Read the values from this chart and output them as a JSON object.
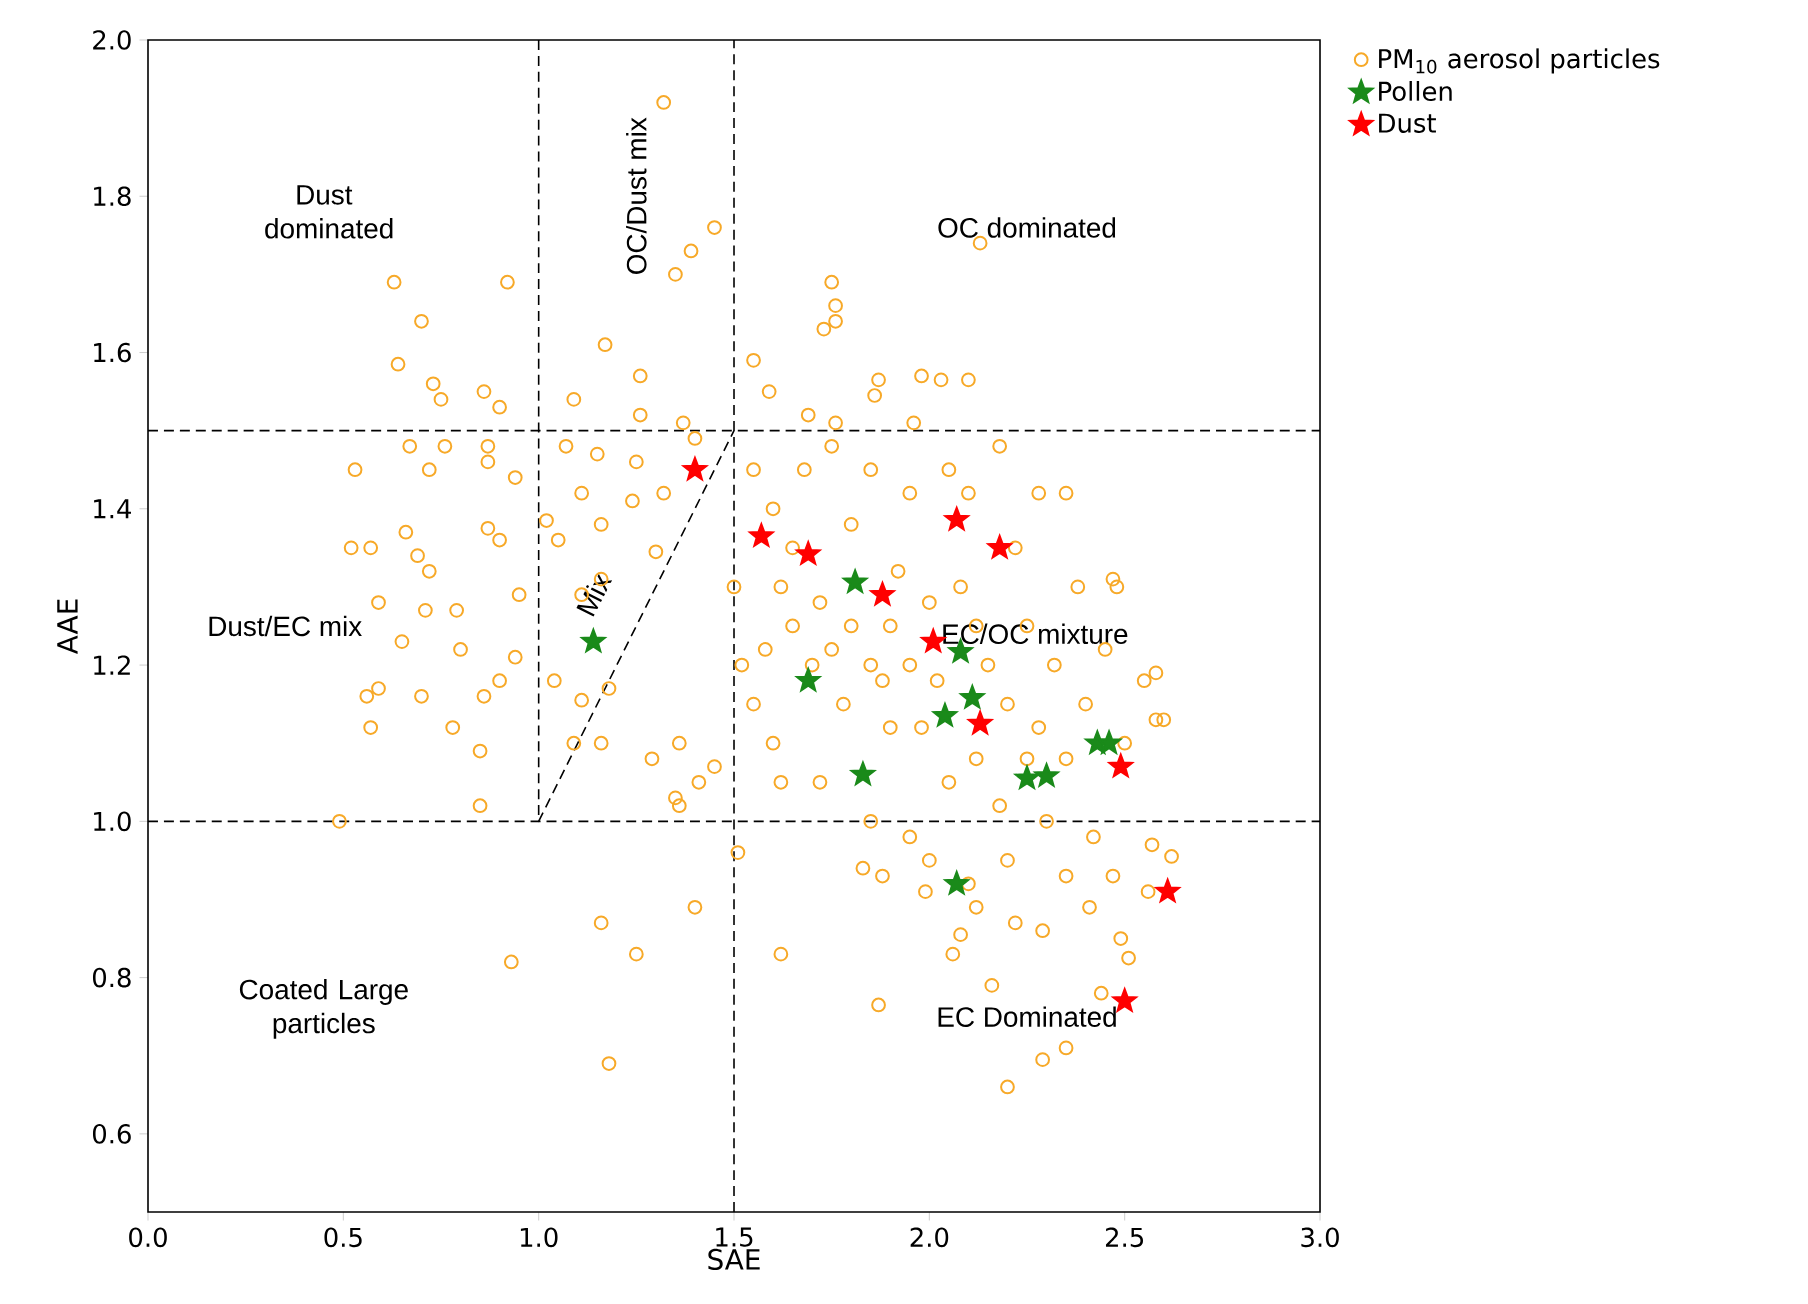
{
  "chart_data": {
    "type": "scatter",
    "xlabel": "SAE",
    "ylabel": "AAE",
    "xlim": [
      0,
      3
    ],
    "ylim": [
      0.5,
      2.0
    ],
    "xticks": [
      {
        "value": 0,
        "label": "0.0"
      },
      0.5,
      {
        "value": 1,
        "label": "1.0"
      },
      1.5,
      {
        "value": 2,
        "label": "2.0"
      },
      2.5,
      {
        "value": 3,
        "label": "3.0"
      }
    ],
    "yticks": [
      0.6,
      0.8,
      {
        "value": 1,
        "label": "1.0"
      },
      1.2,
      1.4,
      1.6,
      1.8,
      {
        "value": 2,
        "label": "2.0"
      }
    ],
    "legend": "top right",
    "series": [
      {
        "name": "PM$_{10}$ aerosol particles",
        "color": "#f7a928",
        "marker": "circle",
        "x": [
          1.32,
          1.45,
          1.39,
          1.35,
          0.92,
          0.63,
          0.7,
          0.64,
          0.73,
          0.75,
          0.86,
          0.9,
          1.09,
          1.26,
          1.26,
          1.37,
          1.4,
          1.17,
          0.67,
          0.76,
          0.87,
          0.53,
          0.72,
          0.87,
          0.94,
          0.52,
          0.57,
          0.66,
          0.69,
          0.72,
          0.87,
          0.9,
          0.71,
          0.79,
          0.95,
          0.59,
          0.65,
          0.8,
          0.94,
          0.59,
          0.7,
          0.57,
          0.9,
          0.86,
          0.78,
          0.56,
          0.85,
          0.49,
          0.85,
          1.35,
          1.51,
          1.16,
          0.93,
          1.25,
          1.4,
          1.18,
          1.07,
          1.15,
          1.25,
          1.11,
          1.24,
          1.32,
          1.05,
          1.16,
          1.3,
          1.11,
          1.16,
          1.02,
          1.04,
          1.11,
          1.18,
          1.09,
          1.16,
          1.29,
          1.36,
          1.41,
          1.45,
          1.36,
          1.55,
          1.59,
          1.75,
          1.76,
          1.76,
          1.73,
          1.87,
          1.86,
          2.03,
          2.1,
          2.13,
          1.96,
          1.69,
          1.76,
          1.98,
          1.55,
          1.6,
          1.62,
          1.58,
          1.55,
          1.6,
          1.65,
          1.7,
          1.72,
          1.75,
          1.78,
          1.8,
          1.85,
          1.88,
          1.9,
          1.92,
          1.95,
          1.98,
          2.0,
          2.02,
          2.05,
          2.08,
          2.1,
          2.12,
          2.15,
          2.18,
          2.2,
          2.22,
          2.25,
          2.28,
          2.3,
          2.32,
          2.35,
          2.38,
          2.4,
          2.42,
          2.45,
          2.5,
          2.55,
          2.58,
          2.48,
          1.68,
          1.75,
          1.85,
          1.95,
          2.05,
          2.18,
          2.28,
          1.5,
          1.52,
          1.62,
          1.72,
          1.85,
          1.95,
          2.0,
          2.1,
          2.2,
          2.35,
          1.65,
          1.8,
          1.9,
          2.12,
          2.25,
          1.62,
          1.87,
          2.06,
          2.08,
          2.2,
          2.29,
          2.35,
          2.16,
          2.44,
          2.49,
          2.51,
          2.56,
          2.62,
          2.57,
          2.6,
          2.58,
          2.47,
          2.41,
          2.29,
          2.22,
          2.12,
          1.99,
          1.88,
          1.83,
          2.47,
          2.35
        ],
        "values": [
          1.92,
          1.76,
          1.73,
          1.7,
          1.69,
          1.69,
          1.64,
          1.585,
          1.56,
          1.54,
          1.55,
          1.53,
          1.54,
          1.57,
          1.52,
          1.51,
          1.49,
          1.61,
          1.48,
          1.48,
          1.48,
          1.45,
          1.45,
          1.46,
          1.44,
          1.35,
          1.35,
          1.37,
          1.34,
          1.32,
          1.375,
          1.36,
          1.27,
          1.27,
          1.29,
          1.28,
          1.23,
          1.22,
          1.21,
          1.17,
          1.16,
          1.12,
          1.18,
          1.16,
          1.12,
          1.16,
          1.09,
          1.0,
          1.02,
          1.03,
          0.96,
          0.87,
          0.82,
          0.83,
          0.89,
          0.69,
          1.48,
          1.47,
          1.46,
          1.42,
          1.41,
          1.42,
          1.36,
          1.38,
          1.345,
          1.29,
          1.31,
          1.385,
          1.18,
          1.155,
          1.17,
          1.1,
          1.1,
          1.08,
          1.1,
          1.05,
          1.07,
          1.02,
          1.59,
          1.55,
          1.69,
          1.66,
          1.64,
          1.63,
          1.565,
          1.545,
          1.565,
          1.565,
          1.74,
          1.51,
          1.52,
          1.51,
          1.57,
          1.45,
          1.4,
          1.3,
          1.22,
          1.15,
          1.1,
          1.25,
          1.2,
          1.28,
          1.22,
          1.15,
          1.25,
          1.2,
          1.18,
          1.25,
          1.32,
          1.2,
          1.12,
          1.28,
          1.18,
          1.05,
          1.3,
          1.42,
          1.08,
          1.2,
          1.02,
          1.15,
          1.35,
          1.25,
          1.12,
          1.0,
          1.2,
          1.08,
          1.3,
          1.15,
          0.98,
          1.22,
          1.1,
          1.18,
          1.13,
          1.3,
          1.45,
          1.48,
          1.45,
          1.42,
          1.45,
          1.48,
          1.42,
          1.3,
          1.2,
          1.05,
          1.05,
          1.0,
          0.98,
          0.95,
          0.92,
          0.95,
          0.93,
          1.35,
          1.38,
          1.12,
          1.25,
          1.08,
          0.83,
          0.765,
          0.83,
          0.855,
          0.66,
          0.695,
          0.71,
          0.79,
          0.78,
          0.85,
          0.825,
          0.91,
          0.955,
          0.97,
          1.13,
          1.19,
          0.93,
          0.89,
          0.86,
          0.87,
          0.89,
          0.91,
          0.93,
          0.94,
          1.31,
          1.42
        ]
      },
      {
        "name": "Pollen",
        "color": "#1a8a1a",
        "marker": "star",
        "x": [
          1.14,
          1.69,
          1.81,
          2.08,
          2.11,
          2.04,
          1.83,
          2.25,
          2.3,
          2.43,
          2.46,
          2.07
        ],
        "values": [
          1.23,
          1.18,
          1.306,
          1.217,
          1.158,
          1.135,
          1.06,
          1.055,
          1.058,
          1.1,
          1.1,
          0.92
        ]
      },
      {
        "name": "Dust",
        "color": "#ff0000",
        "marker": "star",
        "x": [
          1.4,
          1.57,
          1.69,
          1.88,
          2.01,
          2.07,
          2.18,
          2.13,
          2.49,
          2.61,
          2.5
        ],
        "values": [
          1.45,
          1.365,
          1.342,
          1.29,
          1.23,
          1.386,
          1.35,
          1.125,
          1.07,
          0.91,
          0.77
        ]
      },
      {
        "type": "line",
        "color": "#000000",
        "line_style": "dashed",
        "marker": "none",
        "x": [
          1,
          1,
          1.5
        ],
        "values": [
          2,
          1,
          1.5
        ]
      }
    ],
    "ref_lines": [
      {
        "axis": "x",
        "value": 1.5,
        "color": "#000000",
        "line_style": "dashed"
      },
      {
        "axis": "y",
        "value": 1.5,
        "color": "#000000",
        "line_style": "dashed"
      },
      {
        "axis": "y",
        "value": 1.0,
        "color": "#000000",
        "line_style": "dashed"
      }
    ],
    "annotations": [
      "Dust dominated",
      "OC/Dust mix",
      "OC dominated",
      "Dust/EC mix",
      "Mix",
      "EC/OC mixture",
      "Coated Large particles",
      "EC Dominated"
    ]
  }
}
